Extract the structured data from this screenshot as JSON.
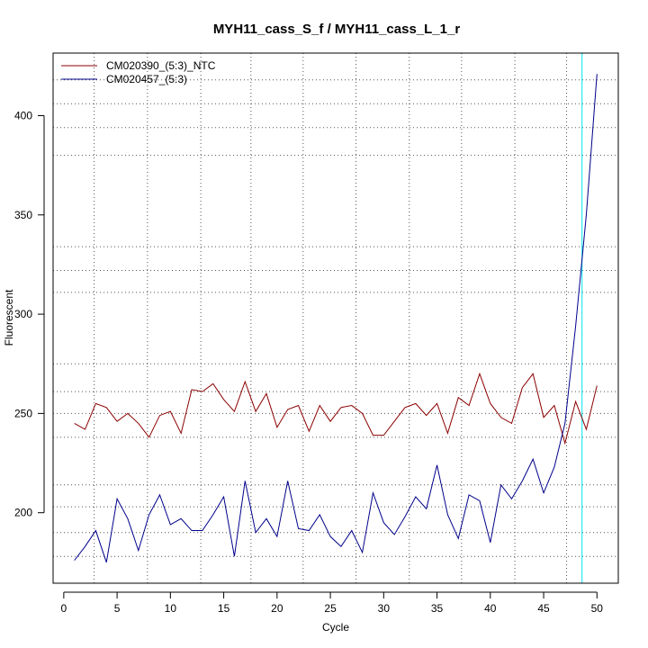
{
  "chart_data": {
    "type": "line",
    "title": "MYH11_cass_S_f / MYH11_cass_L_1_r",
    "xlabel": "Cycle",
    "ylabel": "Fluorescent",
    "xlim": [
      -1.0,
      52.0
    ],
    "ylim": [
      164.5,
      431.5
    ],
    "xticks": [
      0,
      5,
      10,
      15,
      20,
      25,
      30,
      35,
      40,
      45,
      50
    ],
    "yticks": [
      200,
      250,
      300,
      350,
      400
    ],
    "grid": true,
    "vertical_gridlines_dotted": [
      2.85,
      7.85,
      12.85,
      17.55,
      22.45,
      27.4,
      32.4,
      37.3,
      42.3,
      47.15
    ],
    "horizontal_gridlines_dotted": [
      178,
      190,
      203,
      214,
      238,
      250,
      261,
      275,
      311,
      322,
      334,
      380,
      394,
      406,
      418
    ],
    "threshold_cycle": 48.6,
    "threshold_color": "#00e5ee",
    "legend_position": "top-left",
    "x": [
      1,
      2,
      3,
      4,
      5,
      6,
      7,
      8,
      9,
      10,
      11,
      12,
      13,
      14,
      15,
      16,
      17,
      18,
      19,
      20,
      21,
      22,
      23,
      24,
      25,
      26,
      27,
      28,
      29,
      30,
      31,
      32,
      33,
      34,
      35,
      36,
      37,
      38,
      39,
      40,
      41,
      42,
      43,
      44,
      45,
      46,
      47,
      48,
      49,
      50
    ],
    "series": [
      {
        "name": "CM020390_(5:3)_NTC",
        "color": "#8b0000",
        "values": [
          245,
          242,
          255,
          253,
          246,
          250,
          245,
          238,
          249,
          251,
          240,
          262,
          261,
          265,
          257,
          251,
          266,
          251,
          260,
          243,
          252,
          254,
          241,
          254,
          246,
          253,
          254,
          250,
          239,
          239,
          246,
          253,
          255,
          249,
          255,
          240,
          258,
          254,
          270,
          255,
          248,
          245,
          263,
          270,
          248,
          254,
          235,
          256,
          242,
          264
        ]
      },
      {
        "name": "CM020457_(5:3)",
        "color": "#00008b",
        "values": [
          176,
          183,
          191,
          175,
          207,
          197,
          181,
          199,
          209,
          194,
          197,
          191,
          191,
          199,
          208,
          178,
          216,
          190,
          197,
          188,
          216,
          192,
          191,
          199,
          188,
          183,
          191,
          180,
          210,
          195,
          189,
          198,
          208,
          202,
          224,
          199,
          187,
          209,
          206,
          185,
          214,
          207,
          216,
          227,
          210,
          223,
          245,
          294,
          350,
          421
        ]
      }
    ]
  }
}
